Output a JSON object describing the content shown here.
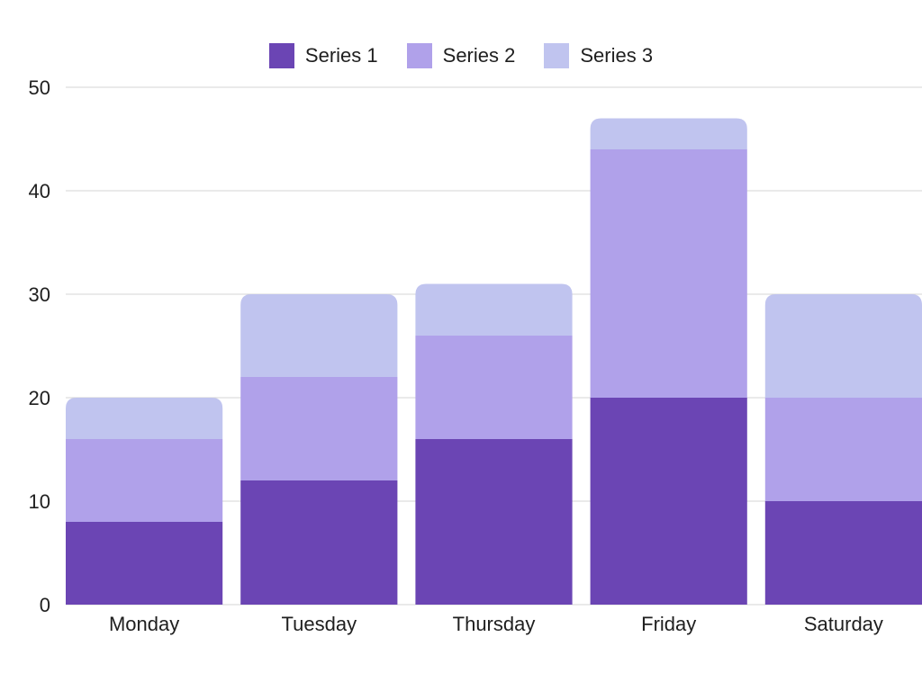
{
  "chart_data": {
    "type": "bar",
    "stacked": true,
    "categories": [
      "Monday",
      "Tuesday",
      "Thursday",
      "Friday",
      "Saturday"
    ],
    "series": [
      {
        "name": "Series 1",
        "values": [
          8,
          12,
          16,
          20,
          10
        ],
        "color": "#6b45b4"
      },
      {
        "name": "Series 2",
        "values": [
          8,
          10,
          10,
          24,
          10
        ],
        "color": "#b0a1ea"
      },
      {
        "name": "Series 3",
        "values": [
          4,
          8,
          5,
          3,
          10
        ],
        "color": "#c0c4ef"
      }
    ],
    "title": "",
    "xlabel": "",
    "ylabel": "",
    "ylim": [
      0,
      50
    ],
    "yticks": [
      0,
      10,
      20,
      30,
      40,
      50
    ],
    "grid": true,
    "legend_position": "top-center"
  }
}
